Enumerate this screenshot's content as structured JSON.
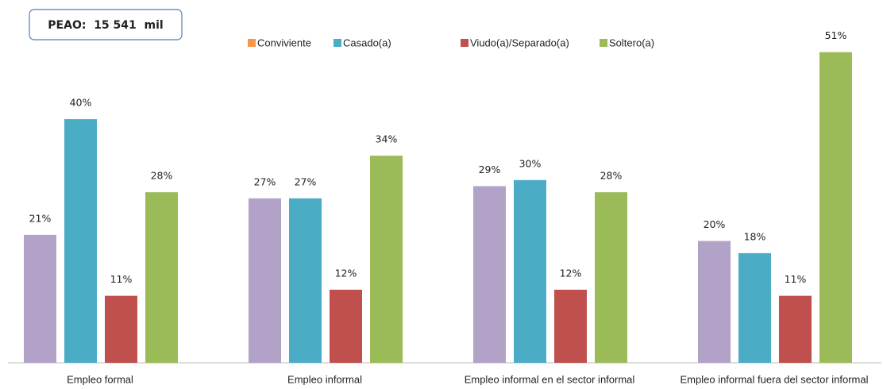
{
  "chart_data": {
    "type": "bar",
    "annotation": "PEAO:  15 541  mil",
    "categories": [
      "Empleo formal",
      "Empleo informal",
      "Empleo informal en el sector informal",
      "Empleo informal fuera del sector informal"
    ],
    "series": [
      {
        "name": "Conviviente",
        "color": "#b3a2c7",
        "legend_color": "#f79646",
        "values": [
          21,
          27,
          29,
          20
        ],
        "value_labels": [
          "21%",
          "27%",
          "29%",
          "20%"
        ]
      },
      {
        "name": "Casado(a)",
        "color": "#4bacc6",
        "legend_color": "#4bacc6",
        "values": [
          40,
          27,
          30,
          18
        ],
        "value_labels": [
          "40%",
          "27%",
          "30%",
          "18%"
        ]
      },
      {
        "name": "Viudo(a)/Separado(a)",
        "color": "#c0504d",
        "legend_color": "#c0504d",
        "values": [
          11,
          12,
          12,
          11
        ],
        "value_labels": [
          "11%",
          "12%",
          "12%",
          "11%"
        ]
      },
      {
        "name": "Soltero(a)",
        "color": "#9bbb59",
        "legend_color": "#9bbb59",
        "values": [
          28,
          34,
          28,
          51
        ],
        "value_labels": [
          "28%",
          "34%",
          "28%",
          "51%"
        ]
      }
    ],
    "ylim": [
      0,
      55
    ]
  }
}
